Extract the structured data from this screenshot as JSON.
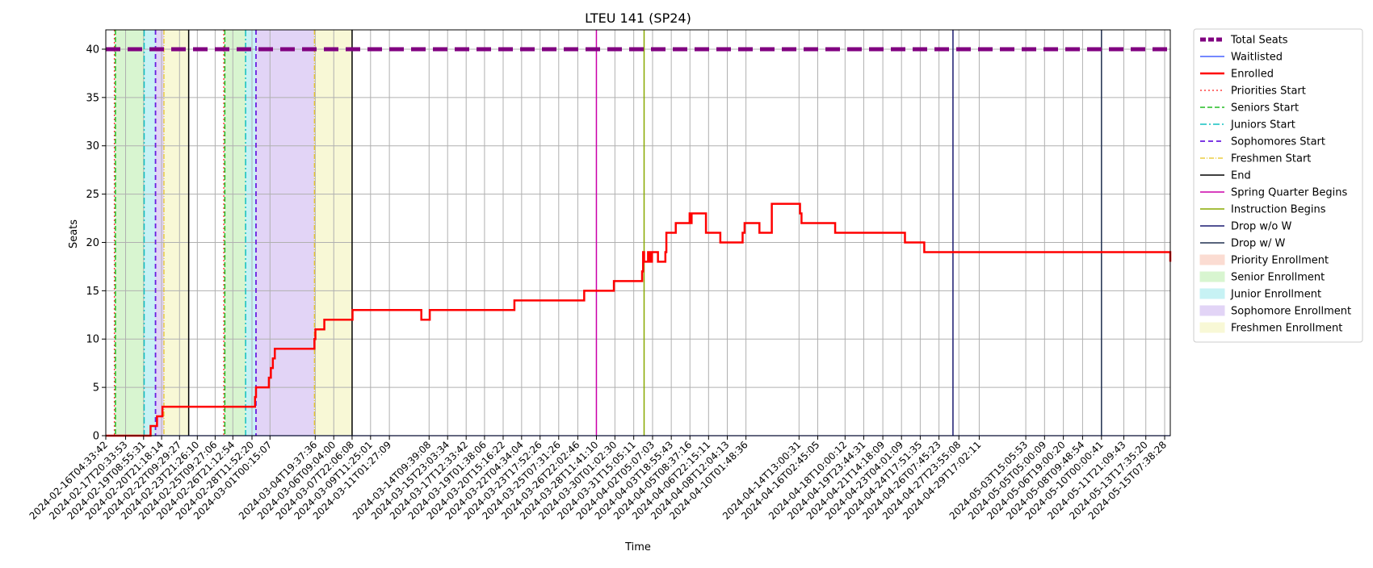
{
  "chart_data": {
    "type": "line",
    "title": "LTEU 141 (SP24)",
    "xlabel": "Time",
    "ylabel": "Seats",
    "ylim": [
      0,
      42
    ],
    "yticks": [
      0,
      5,
      10,
      15,
      20,
      25,
      30,
      35,
      40
    ],
    "x_is_time": true,
    "xlim": [
      "2024-02-16T04:33:42",
      "2024-05-15T19:00:00"
    ],
    "xtick_labels": [
      "2024-02-16T04:33:42",
      "2024-02-17T20:33:53",
      "2024-02-19T08:55:31",
      "2024-02-20T21:18:14",
      "2024-02-22T09:29:27",
      "2024-02-23T21:26:10",
      "2024-02-25T09:27:06",
      "2024-02-26T21:12:54",
      "2024-02-28T11:52:20",
      "2024-03-01T00:15:07",
      "2024-03-04T19:37:36",
      "2024-03-06T09:04:00",
      "2024-03-07T22:06:08",
      "2024-03-09T11:25:01",
      "2024-03-11T01:27:09",
      "2024-03-14T09:39:08",
      "2024-03-15T23:03:34",
      "2024-03-17T12:33:42",
      "2024-03-19T01:38:06",
      "2024-03-20T15:16:22",
      "2024-03-22T04:34:04",
      "2024-03-23T17:52:26",
      "2024-03-25T07:31:26",
      "2024-03-26T22:02:46",
      "2024-03-28T11:41:10",
      "2024-03-30T01:02:30",
      "2024-03-31T15:05:11",
      "2024-04-02T05:07:03",
      "2024-04-03T18:55:43",
      "2024-04-05T08:37:16",
      "2024-04-06T22:15:11",
      "2024-04-08T12:04:13",
      "2024-04-10T01:48:36",
      "2024-04-14T13:00:31",
      "2024-04-16T02:45:05",
      "2024-04-18T10:00:12",
      "2024-04-19T23:44:31",
      "2024-04-21T14:18:09",
      "2024-04-23T04:01:09",
      "2024-04-24T17:51:35",
      "2024-04-26T07:45:23",
      "2024-04-27T23:55:08",
      "2024-04-29T17:02:11",
      "2024-05-03T15:05:53",
      "2024-05-05T05:00:09",
      "2024-05-06T19:00:20",
      "2024-05-08T09:48:54",
      "2024-05-10T00:00:41",
      "2024-05-11T21:09:43",
      "2024-05-13T17:35:20",
      "2024-05-15T07:38:28"
    ],
    "total_seats": 40,
    "waitlisted": 0,
    "series": [
      {
        "name": "Enrolled",
        "color": "#ff0000",
        "points": [
          [
            "2024-02-16T04:33:42",
            0
          ],
          [
            "2024-02-19T22:00:00",
            0
          ],
          [
            "2024-02-19T23:00:00",
            1
          ],
          [
            "2024-02-20T11:00:00",
            1
          ],
          [
            "2024-02-20T12:00:00",
            2
          ],
          [
            "2024-02-20T22:00:00",
            2
          ],
          [
            "2024-02-20T23:00:00",
            3
          ],
          [
            "2024-02-28T14:00:00",
            3
          ],
          [
            "2024-02-28T18:00:00",
            4
          ],
          [
            "2024-02-28T20:00:00",
            5
          ],
          [
            "2024-02-29T20:00:00",
            5
          ],
          [
            "2024-02-29T22:00:00",
            6
          ],
          [
            "2024-03-01T02:00:00",
            7
          ],
          [
            "2024-03-01T06:00:00",
            8
          ],
          [
            "2024-03-01T10:00:00",
            9
          ],
          [
            "2024-03-04T16:00:00",
            9
          ],
          [
            "2024-03-04T18:00:00",
            10
          ],
          [
            "2024-03-04T20:00:00",
            11
          ],
          [
            "2024-03-05T12:00:00",
            11
          ],
          [
            "2024-03-05T14:00:00",
            12
          ],
          [
            "2024-03-07T22:06:08",
            12
          ],
          [
            "2024-03-07T23:00:00",
            13
          ],
          [
            "2024-03-13T16:00:00",
            13
          ],
          [
            "2024-03-13T18:00:00",
            12
          ],
          [
            "2024-03-14T09:00:00",
            12
          ],
          [
            "2024-03-14T11:00:00",
            13
          ],
          [
            "2024-03-21T12:00:00",
            13
          ],
          [
            "2024-03-21T14:00:00",
            14
          ],
          [
            "2024-03-27T09:00:00",
            14
          ],
          [
            "2024-03-27T11:00:00",
            15
          ],
          [
            "2024-03-29T21:00:00",
            15
          ],
          [
            "2024-03-29T23:00:00",
            16
          ],
          [
            "2024-04-01T06:00:00",
            16
          ],
          [
            "2024-04-01T08:00:00",
            17
          ],
          [
            "2024-04-01T10:00:00",
            19
          ],
          [
            "2024-04-01T12:00:00",
            18
          ],
          [
            "2024-04-01T18:00:00",
            18
          ],
          [
            "2024-04-01T20:00:00",
            19
          ],
          [
            "2024-04-02T00:00:00",
            18
          ],
          [
            "2024-04-02T04:00:00",
            19
          ],
          [
            "2024-04-02T16:00:00",
            18
          ],
          [
            "2024-04-03T05:00:00",
            18
          ],
          [
            "2024-04-03T07:00:00",
            19
          ],
          [
            "2024-04-03T09:00:00",
            21
          ],
          [
            "2024-04-04T02:00:00",
            21
          ],
          [
            "2024-04-04T04:00:00",
            22
          ],
          [
            "2024-04-05T06:00:00",
            22
          ],
          [
            "2024-04-05T08:00:00",
            23
          ],
          [
            "2024-04-05T10:00:00",
            22
          ],
          [
            "2024-04-05T12:00:00",
            23
          ],
          [
            "2024-04-06T15:00:00",
            23
          ],
          [
            "2024-04-06T17:00:00",
            21
          ],
          [
            "2024-04-07T20:00:00",
            21
          ],
          [
            "2024-04-07T22:00:00",
            20
          ],
          [
            "2024-04-09T17:00:00",
            20
          ],
          [
            "2024-04-09T19:00:00",
            21
          ],
          [
            "2024-04-09T23:00:00",
            22
          ],
          [
            "2024-04-11T03:00:00",
            22
          ],
          [
            "2024-04-11T05:00:00",
            21
          ],
          [
            "2024-04-12T04:00:00",
            21
          ],
          [
            "2024-04-12T06:00:00",
            24
          ],
          [
            "2024-04-14T13:00:31",
            24
          ],
          [
            "2024-04-14T15:00:00",
            23
          ],
          [
            "2024-04-14T18:00:00",
            22
          ],
          [
            "2024-04-17T12:00:00",
            22
          ],
          [
            "2024-04-17T14:00:00",
            21
          ],
          [
            "2024-04-23T09:00:00",
            21
          ],
          [
            "2024-04-23T11:00:00",
            20
          ],
          [
            "2024-04-25T00:00:00",
            20
          ],
          [
            "2024-04-25T02:00:00",
            19
          ],
          [
            "2024-05-15T17:00:00",
            19
          ],
          [
            "2024-05-15T19:00:00",
            18
          ]
        ]
      }
    ],
    "phase_bands": [
      {
        "label": "Senior Enrollment",
        "start": "2024-02-17T00:00:00",
        "end": "2024-02-19T10:00:00",
        "color": "#d8f5d0"
      },
      {
        "label": "Junior Enrollment",
        "start": "2024-02-19T10:00:00",
        "end": "2024-02-20T09:00:00",
        "color": "#c7f2f4"
      },
      {
        "label": "Sophomore Enrollment",
        "start": "2024-02-20T09:00:00",
        "end": "2024-02-21T02:00:00",
        "color": "#e2d4f6"
      },
      {
        "label": "Freshmen Enrollment",
        "start": "2024-02-21T02:00:00",
        "end": "2024-02-23T04:00:00",
        "color": "#f8f8d6"
      },
      {
        "label": "Senior Enrollment",
        "start": "2024-02-26T05:00:00",
        "end": "2024-02-27T23:00:00",
        "color": "#d8f5d0"
      },
      {
        "label": "Junior Enrollment",
        "start": "2024-02-27T23:00:00",
        "end": "2024-02-28T20:00:00",
        "color": "#c7f2f4"
      },
      {
        "label": "Sophomore Enrollment",
        "start": "2024-02-28T20:00:00",
        "end": "2024-03-04T18:00:00",
        "color": "#e2d4f6"
      },
      {
        "label": "Freshmen Enrollment",
        "start": "2024-03-04T18:00:00",
        "end": "2024-03-07T22:06:08",
        "color": "#f8f8d6"
      }
    ],
    "event_lines": [
      {
        "label": "Priorities Start",
        "x": "2024-02-16T22:00:00",
        "color": "#ff4040",
        "dash": "2,3",
        "width": 1.5
      },
      {
        "label": "Seniors Start",
        "x": "2024-02-17T00:00:00",
        "color": "#22bb22",
        "dash": "6,3",
        "width": 1.5
      },
      {
        "label": "Juniors Start",
        "x": "2024-02-19T10:00:00",
        "color": "#10c0c0",
        "dash": "8,3,2,3",
        "width": 1.5
      },
      {
        "label": "Sophomores Start",
        "x": "2024-02-20T09:00:00",
        "color": "#6a1de0",
        "dash": "6,4",
        "width": 1.8
      },
      {
        "label": "Freshmen Start",
        "x": "2024-02-21T02:00:00",
        "color": "#e6c21a",
        "dash": "6,2,1,2",
        "width": 1.2
      },
      {
        "label": "End",
        "x": "2024-02-23T04:00:00",
        "color": "#000000",
        "dash": "",
        "width": 1.5
      },
      {
        "label": "Priorities Start",
        "x": "2024-02-26T03:00:00",
        "color": "#ff4040",
        "dash": "2,3",
        "width": 1.5
      },
      {
        "label": "Seniors Start",
        "x": "2024-02-26T05:00:00",
        "color": "#22bb22",
        "dash": "6,3",
        "width": 1.5
      },
      {
        "label": "Juniors Start",
        "x": "2024-02-27T23:00:00",
        "color": "#10c0c0",
        "dash": "8,3,2,3",
        "width": 1.5
      },
      {
        "label": "Sophomores Start",
        "x": "2024-02-28T20:00:00",
        "color": "#6a1de0",
        "dash": "6,4",
        "width": 1.8
      },
      {
        "label": "Freshmen Start",
        "x": "2024-03-04T18:00:00",
        "color": "#e6c21a",
        "dash": "6,2,1,2",
        "width": 1.2
      },
      {
        "label": "End",
        "x": "2024-03-07T22:06:08",
        "color": "#000000",
        "dash": "",
        "width": 1.5
      },
      {
        "label": "Spring Quarter Begins",
        "x": "2024-03-28T11:41:10",
        "color": "#cc00aa",
        "dash": "",
        "width": 1.5
      },
      {
        "label": "Instruction Begins",
        "x": "2024-04-01T12:00:00",
        "color": "#88aa00",
        "dash": "",
        "width": 1.5
      },
      {
        "label": "Drop w/o W",
        "x": "2024-04-27T12:00:00",
        "color": "#1a1a70",
        "dash": "",
        "width": 1.5
      },
      {
        "label": "Drop w/ W",
        "x": "2024-05-10T00:00:41",
        "color": "#203050",
        "dash": "",
        "width": 1.5
      }
    ],
    "legend_position": "outside-right",
    "grid": true,
    "legend": [
      {
        "label": "Total Seats",
        "kind": "line",
        "color": "#800080",
        "dash": "7,3",
        "width": 5
      },
      {
        "label": "Waitlisted",
        "kind": "line",
        "color": "#2040ff",
        "dash": "",
        "width": 1.2
      },
      {
        "label": "Enrolled",
        "kind": "line",
        "color": "#ff0000",
        "dash": "",
        "width": 2.5
      },
      {
        "label": "Priorities Start",
        "kind": "line",
        "color": "#ff4040",
        "dash": "2,3",
        "width": 1.5
      },
      {
        "label": "Seniors Start",
        "kind": "line",
        "color": "#22bb22",
        "dash": "6,3",
        "width": 1.5
      },
      {
        "label": "Juniors Start",
        "kind": "line",
        "color": "#10c0c0",
        "dash": "8,3,2,3",
        "width": 1.5
      },
      {
        "label": "Sophomores Start",
        "kind": "line",
        "color": "#6a1de0",
        "dash": "6,4",
        "width": 1.8
      },
      {
        "label": "Freshmen Start",
        "kind": "line",
        "color": "#e6c21a",
        "dash": "6,2,1,2",
        "width": 1.2
      },
      {
        "label": "End",
        "kind": "line",
        "color": "#000000",
        "dash": "",
        "width": 1.5
      },
      {
        "label": "Spring Quarter Begins",
        "kind": "line",
        "color": "#cc00aa",
        "dash": "",
        "width": 1.5
      },
      {
        "label": "Instruction Begins",
        "kind": "line",
        "color": "#88aa00",
        "dash": "",
        "width": 1.5
      },
      {
        "label": "Drop w/o W",
        "kind": "line",
        "color": "#1a1a70",
        "dash": "",
        "width": 1.5
      },
      {
        "label": "Drop w/ W",
        "kind": "line",
        "color": "#203050",
        "dash": "",
        "width": 1.5
      },
      {
        "label": "Priority Enrollment",
        "kind": "patch",
        "color": "#fbdcd2"
      },
      {
        "label": "Senior Enrollment",
        "kind": "patch",
        "color": "#d8f5d0"
      },
      {
        "label": "Junior Enrollment",
        "kind": "patch",
        "color": "#c7f2f4"
      },
      {
        "label": "Sophomore Enrollment",
        "kind": "patch",
        "color": "#e2d4f6"
      },
      {
        "label": "Freshmen Enrollment",
        "kind": "patch",
        "color": "#f8f8d6"
      }
    ]
  }
}
